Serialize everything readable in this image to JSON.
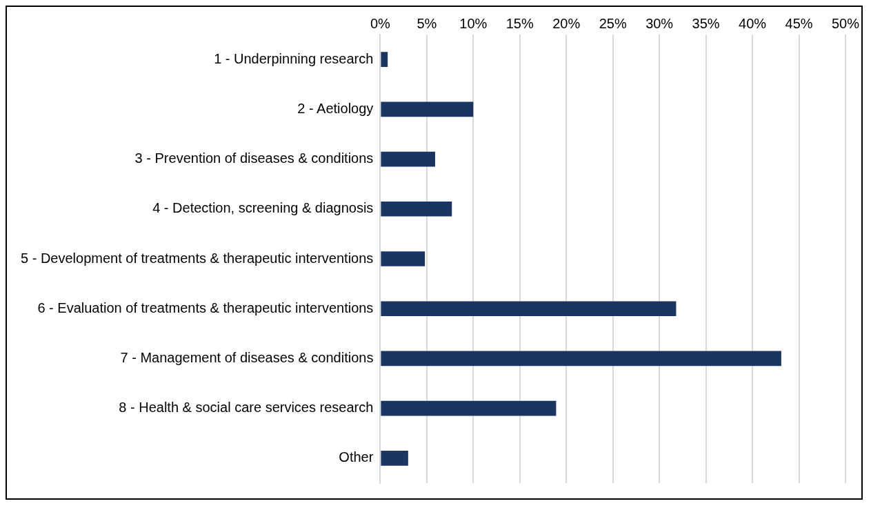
{
  "chart_data": {
    "type": "bar",
    "orientation": "horizontal",
    "categories": [
      "1 - Underpinning research",
      "2 - Aetiology",
      "3 - Prevention of diseases & conditions",
      "4 - Detection, screening & diagnosis",
      "5 - Development of treatments & therapeutic interventions",
      "6 - Evaluation of treatments & therapeutic interventions",
      "7 - Management of diseases & conditions",
      "8 - Health & social care services research",
      "Other"
    ],
    "values": [
      0.8,
      10,
      5.9,
      7.7,
      4.8,
      31.8,
      43.1,
      18.9,
      3
    ],
    "color": "#1a3660",
    "xlim": [
      0,
      50
    ],
    "xticks": [
      {
        "value": 0,
        "label": "0%"
      },
      {
        "value": 5,
        "label": "5%"
      },
      {
        "value": 10,
        "label": "10%"
      },
      {
        "value": 15,
        "label": "15%"
      },
      {
        "value": 20,
        "label": "20%"
      },
      {
        "value": 25,
        "label": "25%"
      },
      {
        "value": 30,
        "label": "30%"
      },
      {
        "value": 35,
        "label": "35%"
      },
      {
        "value": 40,
        "label": "40%"
      },
      {
        "value": 45,
        "label": "45%"
      },
      {
        "value": 50,
        "label": "50%"
      }
    ],
    "grid": "x",
    "legend": false
  }
}
